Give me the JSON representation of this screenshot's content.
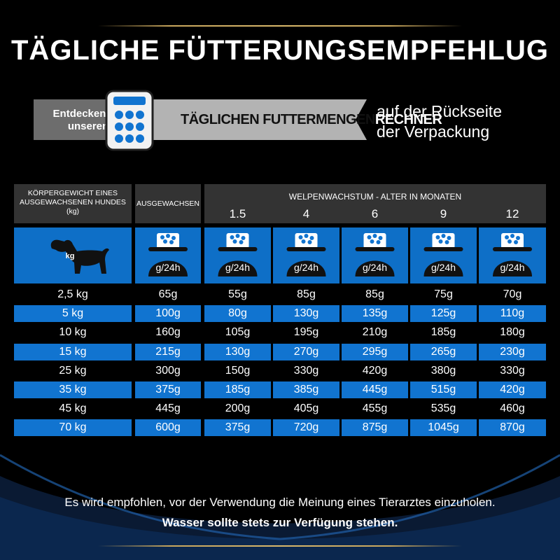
{
  "title": "TÄGLICHE FÜTTERUNGSEMPFEHLUG",
  "banner": {
    "cta": "Entdecken sie unseren",
    "calc_label_a": "TÄGLICHEN FUTTERMENGEN",
    "calc_label_b": "RECHNER",
    "back_text_1": "auf der Rückseite",
    "back_text_2": "der Verpackung"
  },
  "table": {
    "col_weight_header": "KÖRPERGEWICHT EINES AUSGEWACHSENEN HUNDES (kg)",
    "col_adult_header": "AUSGEWACHSEN",
    "growth_header": "WELPENWACHSTUM - ALTER IN MONATEN",
    "months": [
      "1.5",
      "4",
      "6",
      "9",
      "12"
    ],
    "icon_weight_label": "kg",
    "icon_bowl_label": "g/24h",
    "rows": [
      [
        "2,5 kg",
        "65g",
        "55g",
        "85g",
        "85g",
        "75g",
        "70g"
      ],
      [
        "5 kg",
        "100g",
        "80g",
        "130g",
        "135g",
        "125g",
        "110g"
      ],
      [
        "10 kg",
        "160g",
        "105g",
        "195g",
        "210g",
        "185g",
        "180g"
      ],
      [
        "15 kg",
        "215g",
        "130g",
        "270g",
        "295g",
        "265g",
        "230g"
      ],
      [
        "25 kg",
        "300g",
        "150g",
        "330g",
        "420g",
        "380g",
        "330g"
      ],
      [
        "35 kg",
        "375g",
        "185g",
        "385g",
        "445g",
        "515g",
        "420g"
      ],
      [
        "45 kg",
        "445g",
        "200g",
        "405g",
        "455g",
        "535g",
        "460g"
      ],
      [
        "70 kg",
        "600g",
        "375g",
        "720g",
        "875g",
        "1045g",
        "870g"
      ]
    ]
  },
  "footer": {
    "line1": "Es wird empfohlen, vor der Verwendung die Meinung eines Tierarztes einzuholen.",
    "line2": "Wasser sollte stets zur Verfügung stehen."
  },
  "colors": {
    "background": "#000000",
    "accent_blue": "#1174d0",
    "header_gray": "#333333",
    "gold": "#c9a75d"
  }
}
